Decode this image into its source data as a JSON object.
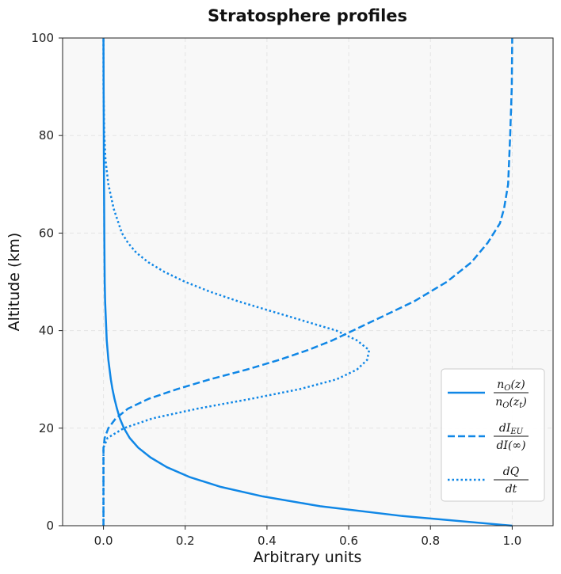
{
  "chart_data": {
    "type": "line",
    "title": "Stratosphere profiles",
    "xlabel": "Arbitrary units",
    "ylabel": "Altitude (km)",
    "xlim": [
      -0.1,
      1.1
    ],
    "ylim": [
      0,
      100
    ],
    "xticks": [
      "0.0",
      "0.2",
      "0.4",
      "0.6",
      "0.8",
      "1.0"
    ],
    "yticks": [
      "0",
      "20",
      "40",
      "60",
      "80",
      "100"
    ],
    "grid": true,
    "legend_position": "lower-right",
    "color": "#1087e6",
    "background": "#f8f8f8",
    "series": [
      {
        "name": "n_O(z) / n_O(z_t)",
        "style": "solid",
        "legend": {
          "num": "n",
          "num_sub": "O",
          "num_tail": "(z)",
          "den": "n",
          "den_sub": "O",
          "den_tail": "(z",
          "den_sub2": "t",
          "den_end": ")"
        },
        "points": [
          [
            1.0,
            0
          ],
          [
            0.73,
            2
          ],
          [
            0.53,
            4
          ],
          [
            0.39,
            6
          ],
          [
            0.285,
            8
          ],
          [
            0.21,
            10
          ],
          [
            0.155,
            12
          ],
          [
            0.115,
            14
          ],
          [
            0.085,
            16
          ],
          [
            0.064,
            18
          ],
          [
            0.05,
            20
          ],
          [
            0.04,
            22
          ],
          [
            0.033,
            24
          ],
          [
            0.027,
            26
          ],
          [
            0.022,
            28
          ],
          [
            0.018,
            30
          ],
          [
            0.015,
            32
          ],
          [
            0.012,
            34
          ],
          [
            0.01,
            36
          ],
          [
            0.008,
            38
          ],
          [
            0.007,
            40
          ],
          [
            0.006,
            42
          ],
          [
            0.005,
            44
          ],
          [
            0.004,
            46
          ],
          [
            0.003,
            50
          ],
          [
            0.002,
            60
          ],
          [
            0.001,
            75
          ],
          [
            0.0,
            100
          ]
        ]
      },
      {
        "name": "dI_EU / dI(∞)",
        "style": "dashed",
        "legend": {
          "num": "dI",
          "num_sub": "EU",
          "den": "dI(∞)"
        },
        "points": [
          [
            0.0,
            0
          ],
          [
            0.0,
            16
          ],
          [
            0.003,
            18
          ],
          [
            0.012,
            20
          ],
          [
            0.03,
            22
          ],
          [
            0.06,
            24
          ],
          [
            0.11,
            26
          ],
          [
            0.18,
            28
          ],
          [
            0.26,
            30
          ],
          [
            0.35,
            32
          ],
          [
            0.43,
            34
          ],
          [
            0.5,
            36
          ],
          [
            0.56,
            38
          ],
          [
            0.61,
            40
          ],
          [
            0.66,
            42
          ],
          [
            0.71,
            44
          ],
          [
            0.76,
            46
          ],
          [
            0.8,
            48
          ],
          [
            0.84,
            50
          ],
          [
            0.87,
            52
          ],
          [
            0.9,
            54
          ],
          [
            0.92,
            56
          ],
          [
            0.94,
            58
          ],
          [
            0.955,
            60
          ],
          [
            0.97,
            62
          ],
          [
            0.98,
            65
          ],
          [
            0.99,
            70
          ],
          [
            0.995,
            80
          ],
          [
            0.999,
            90
          ],
          [
            1.0,
            100
          ]
        ]
      },
      {
        "name": "dQ / dt",
        "style": "dotted",
        "legend": {
          "num": "dQ",
          "den": "dt"
        },
        "points": [
          [
            0.0,
            0
          ],
          [
            0.0,
            16
          ],
          [
            0.01,
            18
          ],
          [
            0.05,
            20
          ],
          [
            0.12,
            22
          ],
          [
            0.23,
            24
          ],
          [
            0.36,
            26
          ],
          [
            0.48,
            28
          ],
          [
            0.57,
            30
          ],
          [
            0.62,
            32
          ],
          [
            0.645,
            34
          ],
          [
            0.65,
            36
          ],
          [
            0.62,
            38
          ],
          [
            0.57,
            40
          ],
          [
            0.49,
            42
          ],
          [
            0.41,
            44
          ],
          [
            0.33,
            46
          ],
          [
            0.26,
            48
          ],
          [
            0.2,
            50
          ],
          [
            0.15,
            52
          ],
          [
            0.11,
            54
          ],
          [
            0.08,
            56
          ],
          [
            0.06,
            58
          ],
          [
            0.045,
            60
          ],
          [
            0.025,
            65
          ],
          [
            0.012,
            70
          ],
          [
            0.005,
            75
          ],
          [
            0.002,
            80
          ],
          [
            0.0,
            90
          ],
          [
            0.0,
            100
          ]
        ]
      }
    ]
  }
}
